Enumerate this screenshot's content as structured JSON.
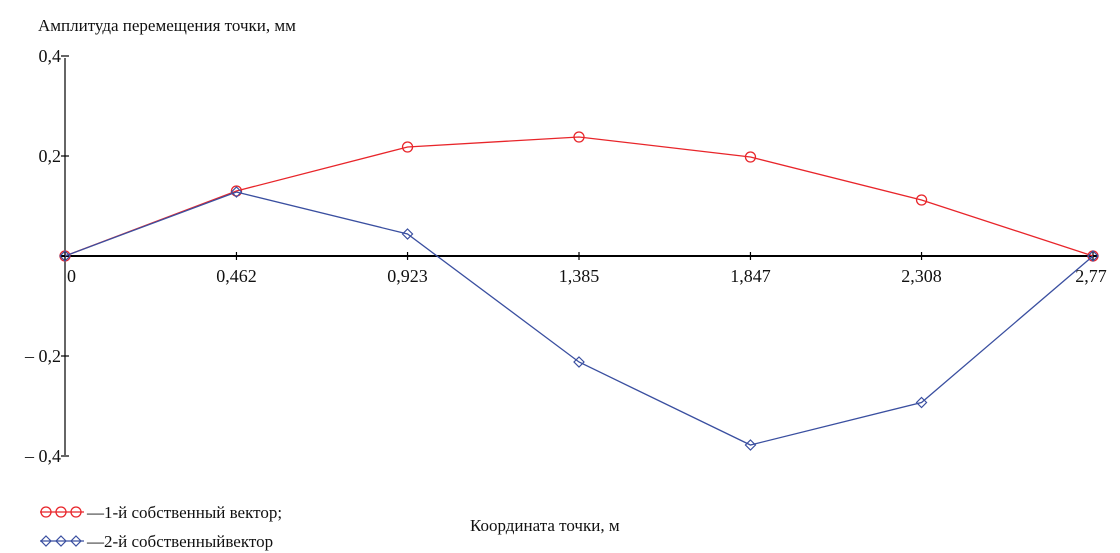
{
  "chart_data": {
    "type": "line",
    "ylabel": "Амплитуда перемещения точки, мм",
    "xlabel": "Координата точки, м",
    "x": [
      0,
      0.462,
      0.923,
      1.385,
      1.847,
      2.308,
      2.77
    ],
    "x_tick_labels": [
      "0",
      "0,462",
      "0,923",
      "1,385",
      "1,847",
      "2,308",
      "2,77"
    ],
    "y_tick_labels": [
      {
        "value": 0.4,
        "label": "0,4"
      },
      {
        "value": 0.2,
        "label": "0,2"
      },
      {
        "value": -0.2,
        "label": "– 0,2"
      },
      {
        "value": -0.4,
        "label": "– 0,4"
      }
    ],
    "xlim": [
      0,
      2.77
    ],
    "ylim": [
      -0.4,
      0.4
    ],
    "grid": false,
    "legend_position": "bottom-left",
    "series": [
      {
        "name": "—1-й  собственный вектор;",
        "marker": "circle",
        "color": "#e8252a",
        "values": [
          0,
          0.13,
          0.218,
          0.238,
          0.198,
          0.112,
          0
        ]
      },
      {
        "name": "—2-й  собственныйвектор",
        "marker": "diamond",
        "color": "#3a4fa0",
        "values": [
          0,
          0.128,
          0.044,
          -0.212,
          -0.378,
          -0.293,
          0
        ]
      }
    ]
  }
}
